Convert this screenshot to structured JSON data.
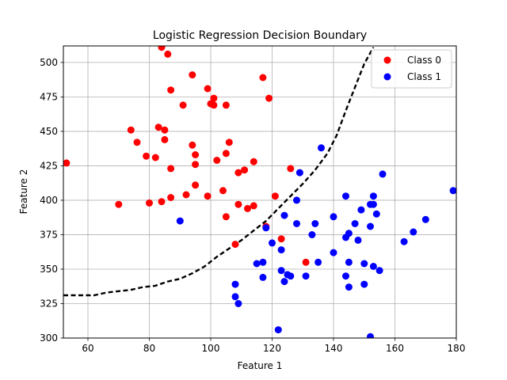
{
  "chart_data": {
    "type": "scatter",
    "title": "Logistic Regression Decision Boundary",
    "xlabel": "Feature 1",
    "ylabel": "Feature 2",
    "xlim": [
      52,
      180
    ],
    "ylim": [
      300,
      512
    ],
    "x_ticks": [
      60,
      80,
      100,
      120,
      140,
      160,
      180
    ],
    "y_ticks": [
      300,
      325,
      350,
      375,
      400,
      425,
      450,
      475,
      500
    ],
    "grid": true,
    "legend_position": "top-right",
    "series": [
      {
        "name": "Class 0",
        "color": "#ff0000",
        "points": [
          [
            53,
            427
          ],
          [
            70,
            397
          ],
          [
            74,
            451
          ],
          [
            76,
            442
          ],
          [
            79,
            432
          ],
          [
            80,
            398
          ],
          [
            82,
            431
          ],
          [
            83,
            453
          ],
          [
            84,
            511
          ],
          [
            84,
            399
          ],
          [
            85,
            451
          ],
          [
            85,
            444
          ],
          [
            86,
            506
          ],
          [
            87,
            480
          ],
          [
            87,
            423
          ],
          [
            87,
            402
          ],
          [
            91,
            469
          ],
          [
            92,
            404
          ],
          [
            94,
            491
          ],
          [
            94,
            440
          ],
          [
            95,
            433
          ],
          [
            95,
            426
          ],
          [
            95,
            411
          ],
          [
            99,
            481
          ],
          [
            99,
            403
          ],
          [
            100,
            470
          ],
          [
            101,
            474
          ],
          [
            101,
            469
          ],
          [
            102,
            429
          ],
          [
            104,
            407
          ],
          [
            105,
            469
          ],
          [
            105,
            434
          ],
          [
            105,
            388
          ],
          [
            106,
            442
          ],
          [
            108,
            368
          ],
          [
            109,
            420
          ],
          [
            109,
            397
          ],
          [
            111,
            422
          ],
          [
            112,
            394
          ],
          [
            114,
            428
          ],
          [
            114,
            396
          ],
          [
            117,
            489
          ],
          [
            118,
            381
          ],
          [
            119,
            474
          ],
          [
            121,
            403
          ],
          [
            123,
            372
          ],
          [
            126,
            423
          ],
          [
            131,
            355
          ]
        ]
      },
      {
        "name": "Class 1",
        "color": "#0000ff",
        "points": [
          [
            90,
            385
          ],
          [
            108,
            339
          ],
          [
            108,
            330
          ],
          [
            109,
            325
          ],
          [
            115,
            354
          ],
          [
            117,
            355
          ],
          [
            117,
            344
          ],
          [
            118,
            380
          ],
          [
            120,
            369
          ],
          [
            122,
            306
          ],
          [
            123,
            364
          ],
          [
            123,
            349
          ],
          [
            124,
            389
          ],
          [
            124,
            341
          ],
          [
            125,
            346
          ],
          [
            126,
            345
          ],
          [
            128,
            400
          ],
          [
            128,
            383
          ],
          [
            129,
            420
          ],
          [
            131,
            345
          ],
          [
            133,
            375
          ],
          [
            134,
            383
          ],
          [
            135,
            355
          ],
          [
            136,
            438
          ],
          [
            140,
            388
          ],
          [
            140,
            362
          ],
          [
            144,
            403
          ],
          [
            144,
            373
          ],
          [
            144,
            345
          ],
          [
            145,
            376
          ],
          [
            145,
            355
          ],
          [
            145,
            337
          ],
          [
            147,
            383
          ],
          [
            148,
            371
          ],
          [
            149,
            393
          ],
          [
            150,
            354
          ],
          [
            150,
            339
          ],
          [
            152,
            397
          ],
          [
            152,
            381
          ],
          [
            152,
            301
          ],
          [
            153,
            403
          ],
          [
            153,
            397
          ],
          [
            153,
            352
          ],
          [
            154,
            390
          ],
          [
            155,
            349
          ],
          [
            156,
            419
          ],
          [
            163,
            370
          ],
          [
            166,
            377
          ],
          [
            170,
            386
          ],
          [
            179,
            407
          ]
        ]
      },
      {
        "name": "Decision Boundary",
        "style": "dashed",
        "color": "#000000",
        "points": [
          [
            52,
            331
          ],
          [
            62,
            331
          ],
          [
            66,
            333
          ],
          [
            70,
            334
          ],
          [
            74,
            335
          ],
          [
            78,
            337
          ],
          [
            82,
            338
          ],
          [
            86,
            341
          ],
          [
            90,
            343
          ],
          [
            94,
            347
          ],
          [
            98,
            352
          ],
          [
            102,
            359
          ],
          [
            106,
            365
          ],
          [
            110,
            371
          ],
          [
            114,
            378
          ],
          [
            118,
            385
          ],
          [
            122,
            394
          ],
          [
            126,
            403
          ],
          [
            130,
            412
          ],
          [
            134,
            422
          ],
          [
            138,
            434
          ],
          [
            141,
            447
          ],
          [
            144,
            465
          ],
          [
            147,
            482
          ],
          [
            150,
            499
          ],
          [
            153,
            511
          ]
        ]
      }
    ]
  }
}
